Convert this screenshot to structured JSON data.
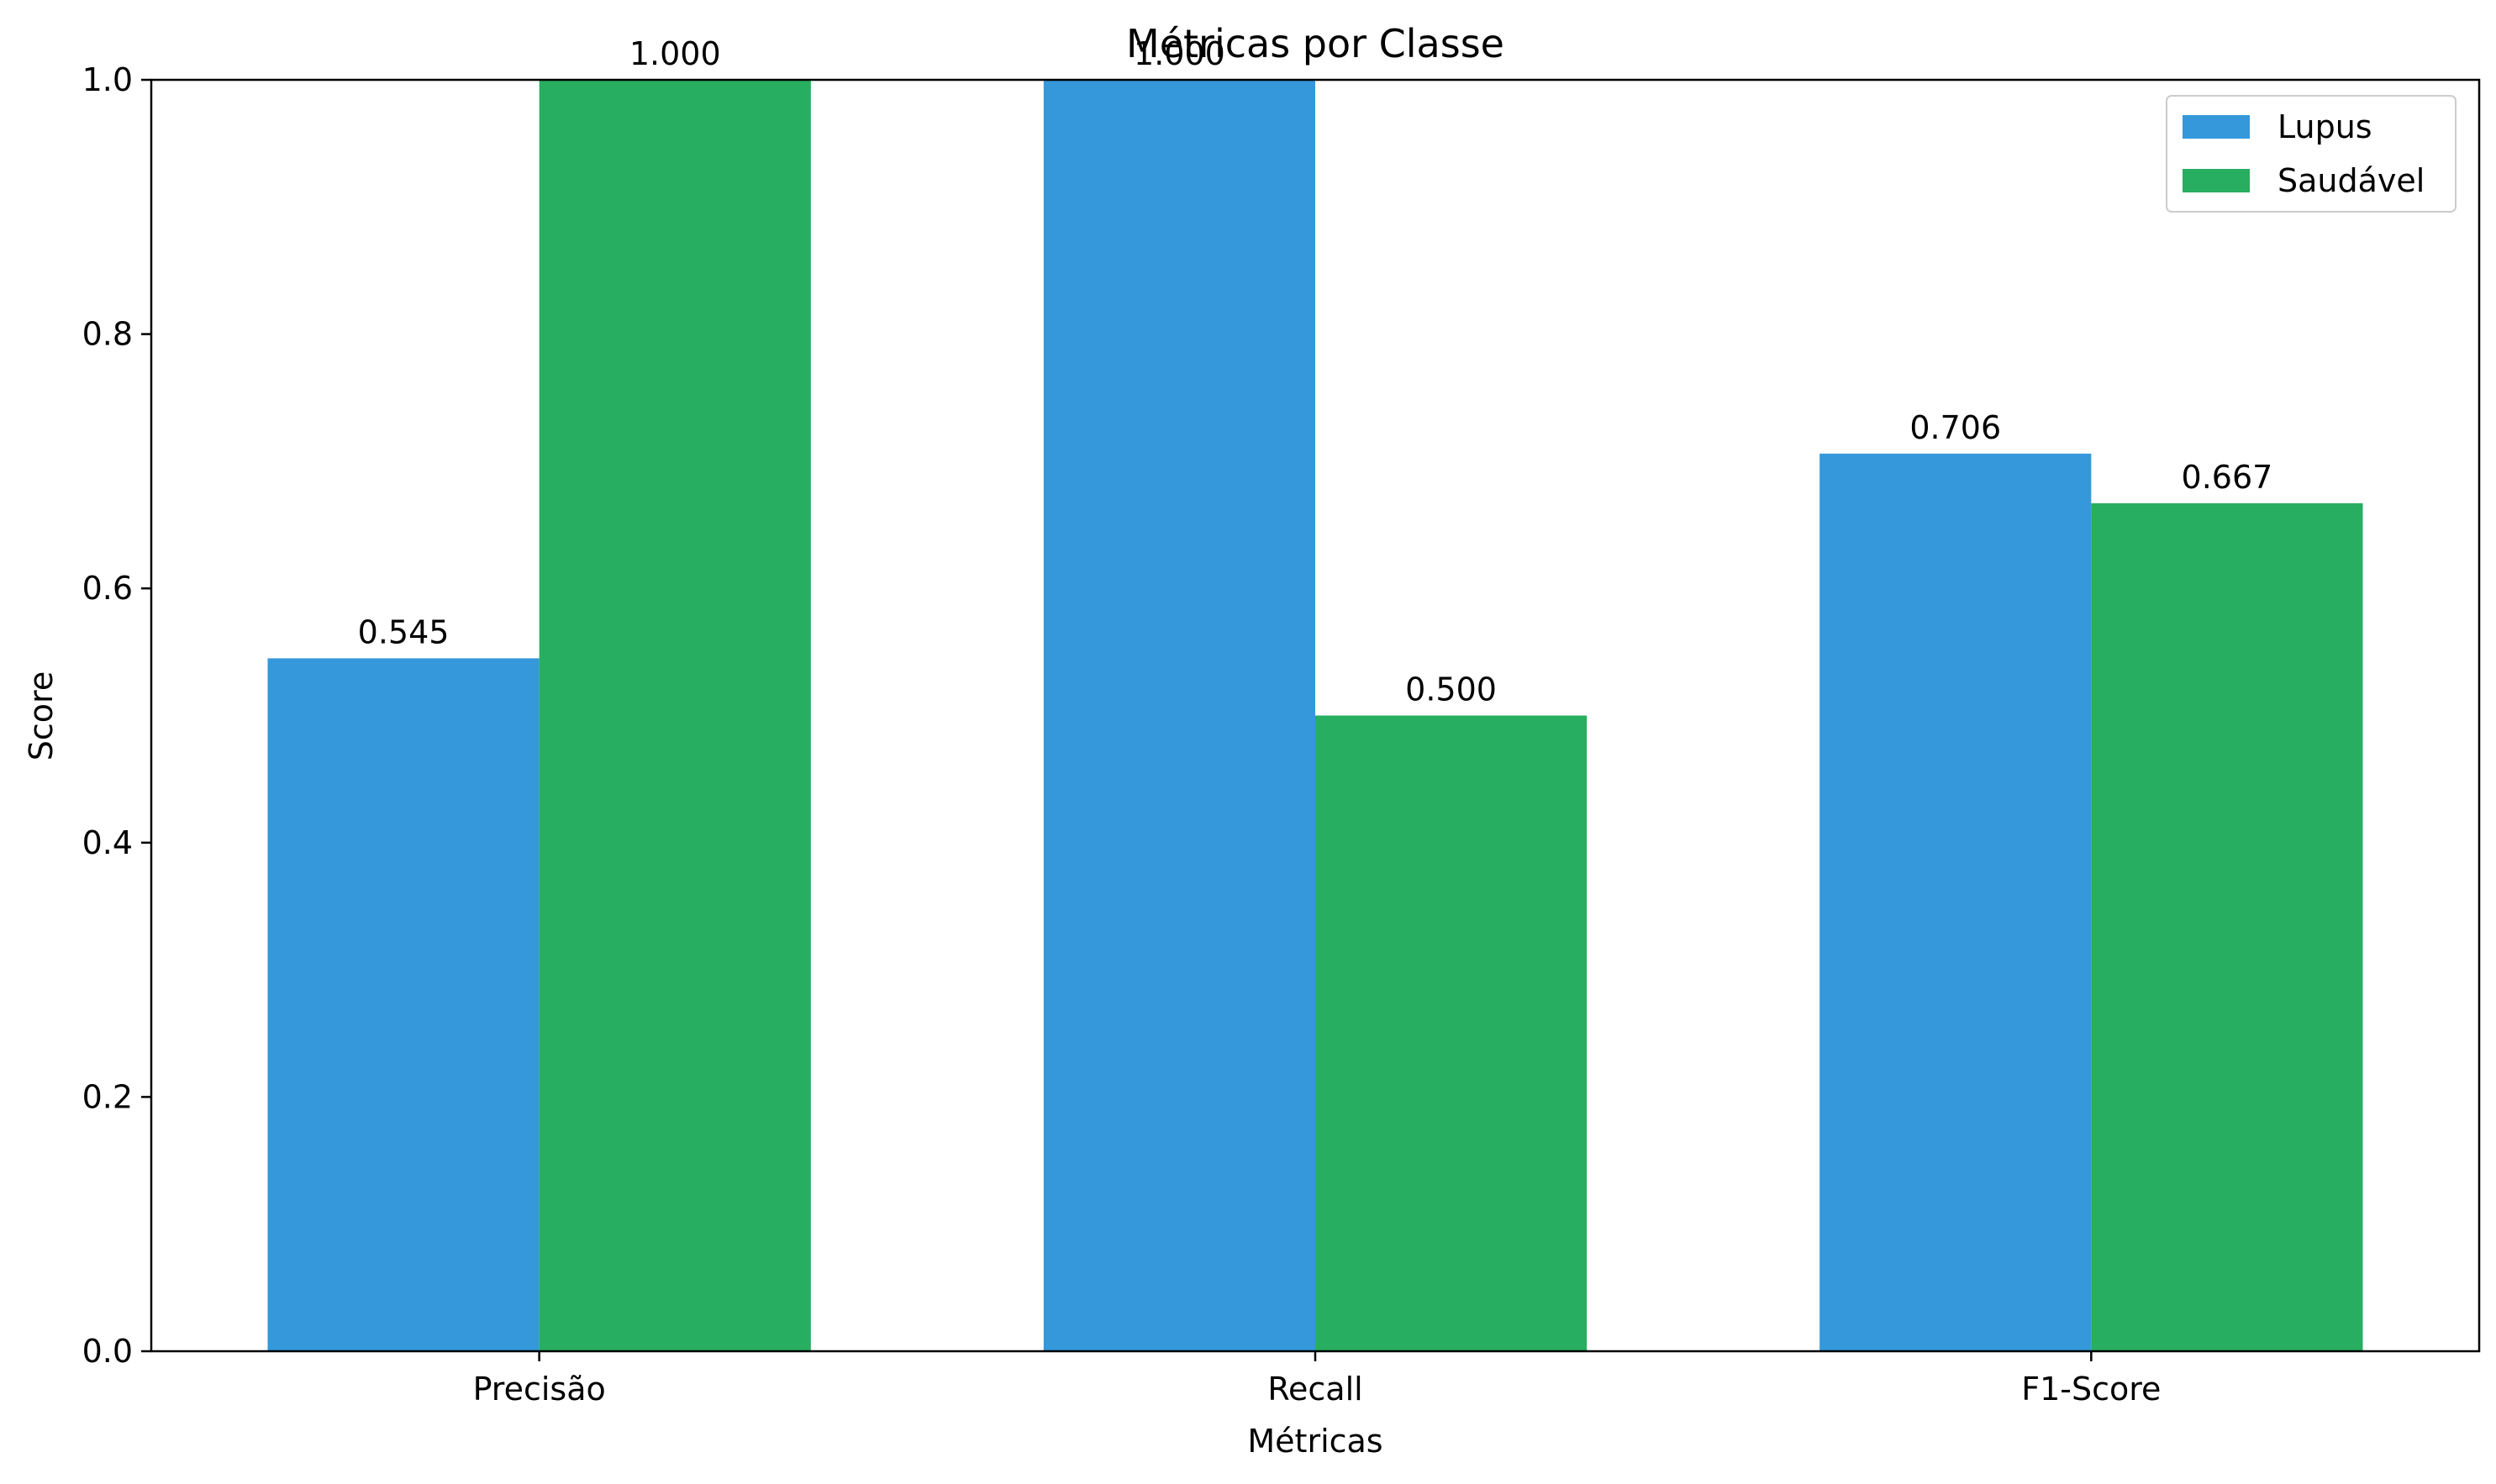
{
  "chart_data": {
    "type": "bar",
    "title": "Métricas por Classe",
    "xlabel": "Métricas",
    "ylabel": "Score",
    "categories": [
      "Precisão",
      "Recall",
      "F1-Score"
    ],
    "series": [
      {
        "name": "Lupus",
        "color": "#3498db",
        "values": [
          0.545,
          1.0,
          0.706
        ],
        "labels": [
          "0.545",
          "1.000",
          "0.706"
        ]
      },
      {
        "name": "Saudável",
        "color": "#27ae60",
        "values": [
          1.0,
          0.5,
          0.667
        ],
        "labels": [
          "1.000",
          "0.500",
          "0.667"
        ]
      }
    ],
    "ylim": [
      0,
      1
    ],
    "yticks": [
      0.0,
      0.2,
      0.4,
      0.6,
      0.8,
      1.0
    ],
    "ytick_labels": [
      "0.0",
      "0.2",
      "0.4",
      "0.6",
      "0.8",
      "1.0"
    ],
    "grid": false,
    "legend_position": "top-right"
  }
}
